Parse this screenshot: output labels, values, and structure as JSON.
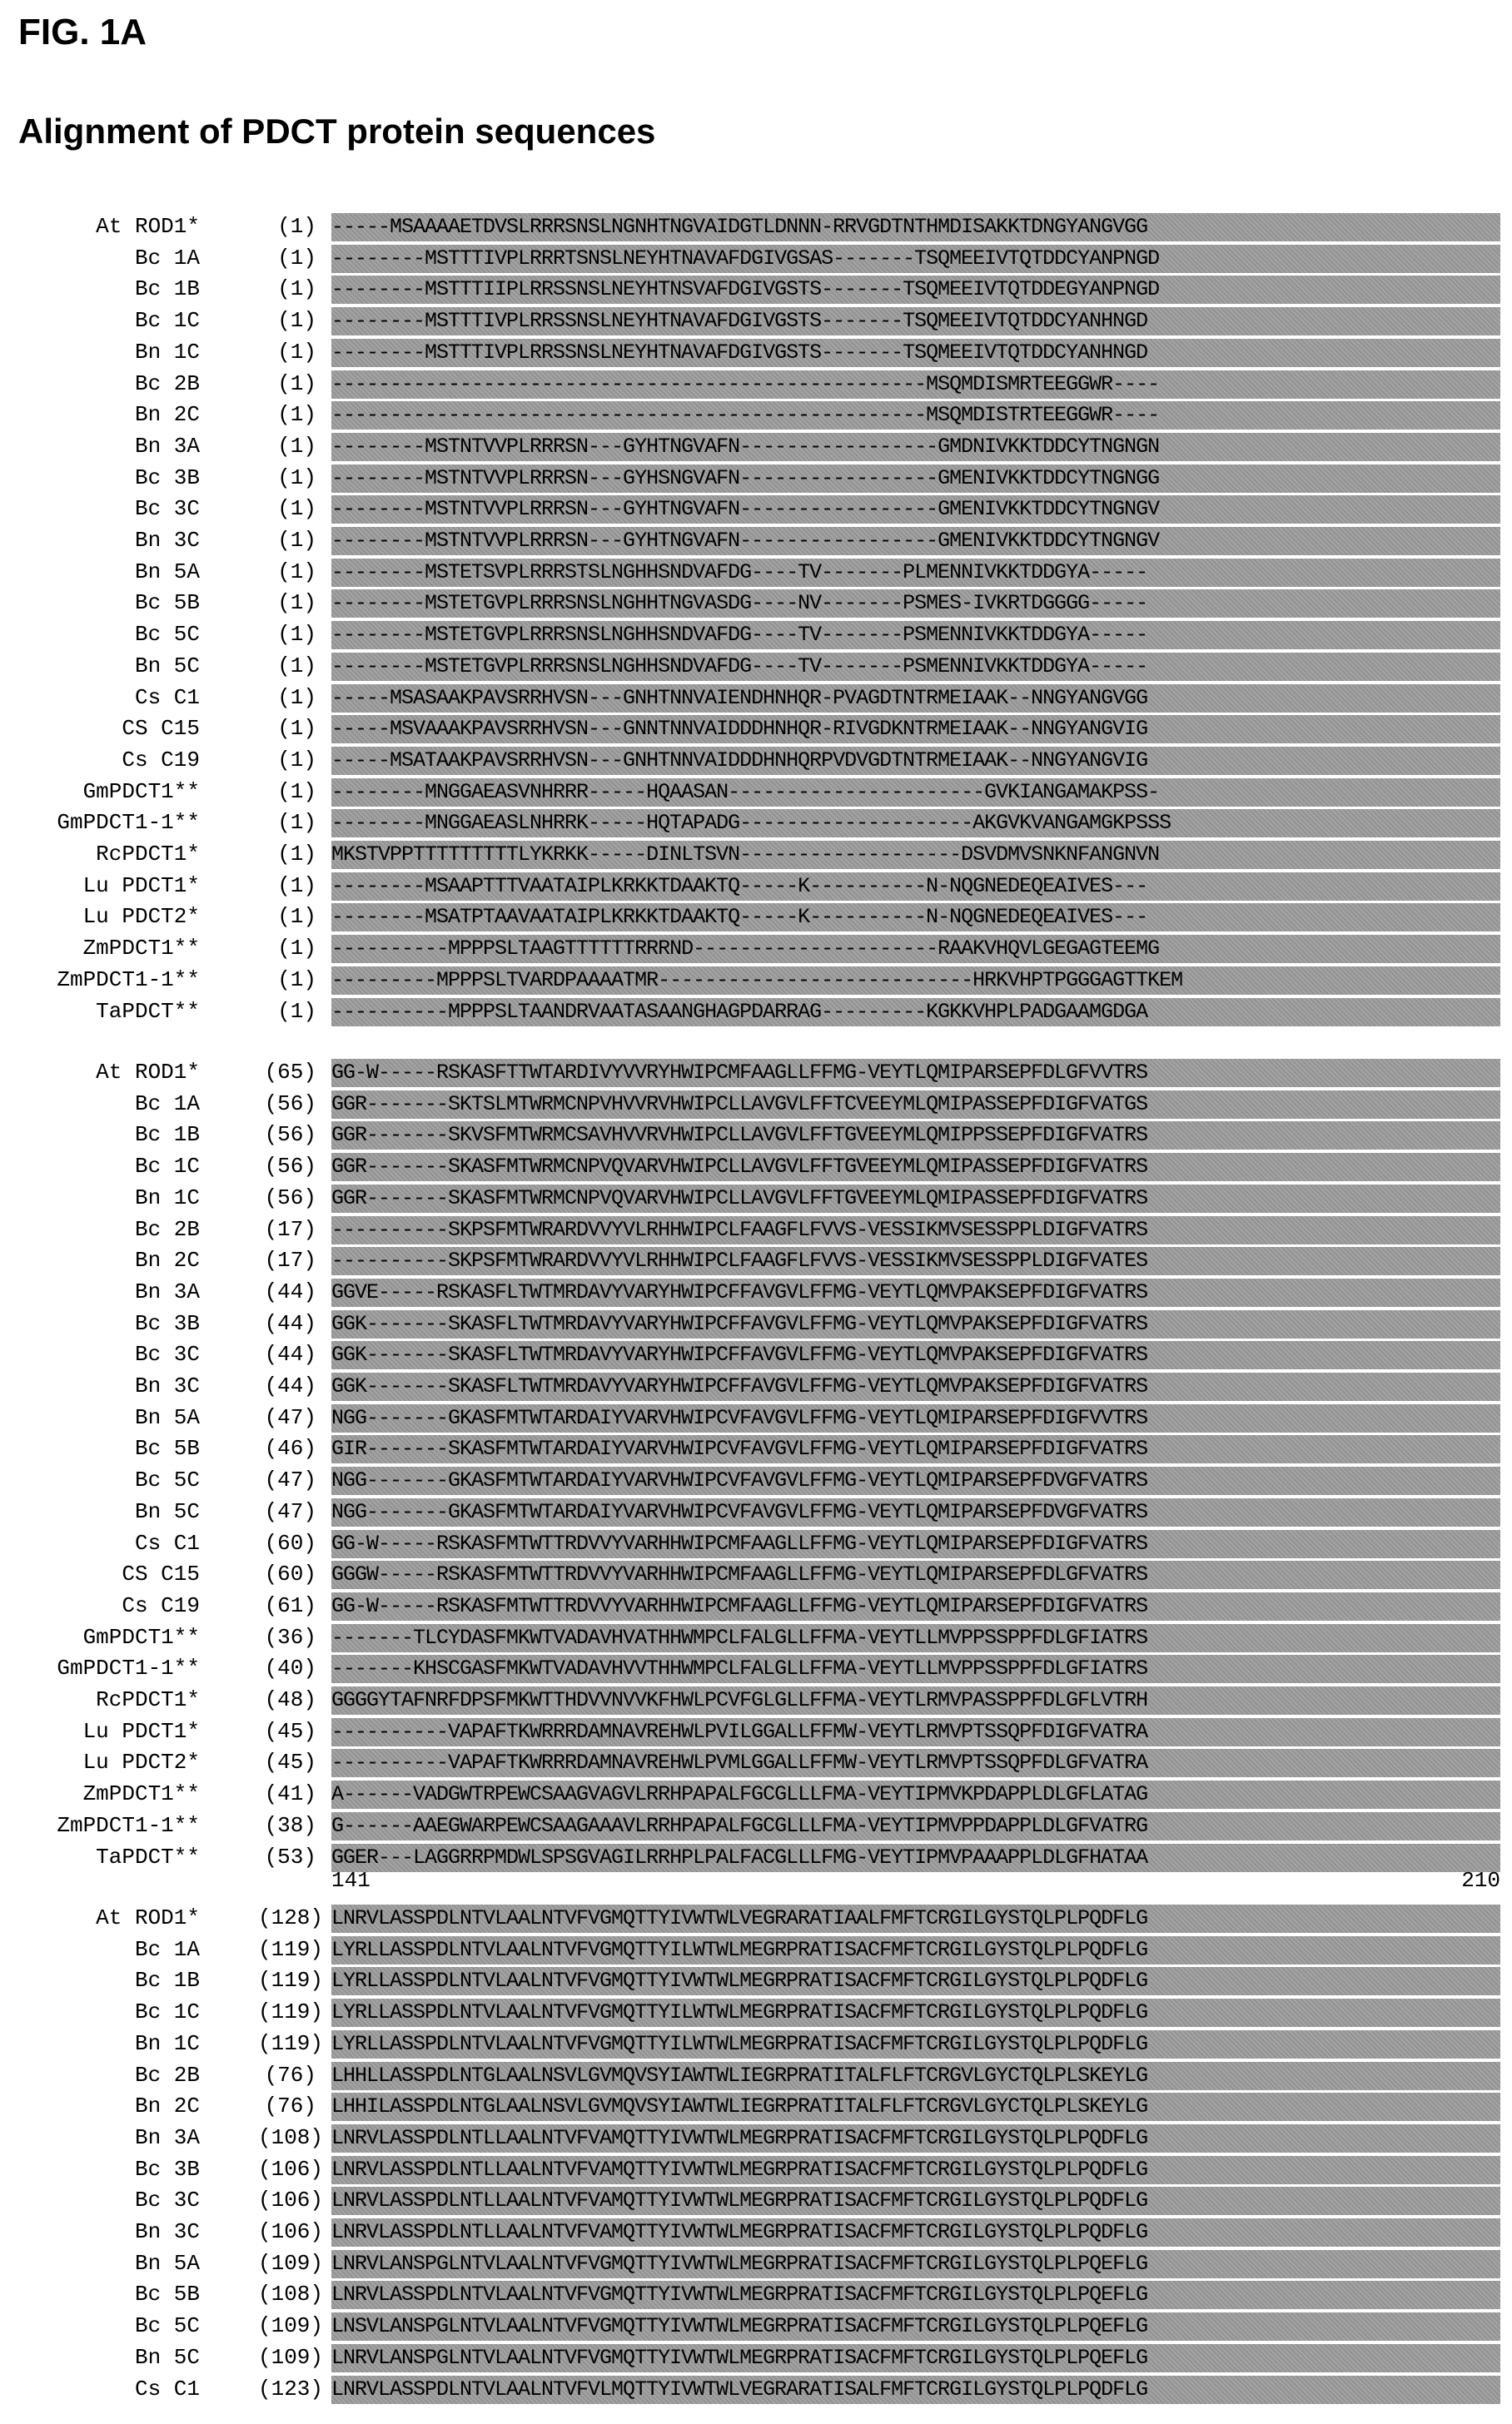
{
  "figure_label": "FIG. 1A",
  "title": "Alignment of PDCT protein sequences",
  "blocks": [
    {
      "rows": [
        {
          "name": "At ROD1*",
          "pos": "(1)",
          "seq": "-----MSAAAAETDVSLRRRSNSLNGNHTNGVAIDGTLDNNN-RRVGDTNTHMDISAKKTDNGYANGVGG"
        },
        {
          "name": "Bc 1A",
          "pos": "(1)",
          "seq": "--------MSTTTIVPLRRRTSNSLNEYHTNAVAFDGIVGSAS-------TSQMEEIVTQTDDCYANPNGD"
        },
        {
          "name": "Bc 1B",
          "pos": "(1)",
          "seq": "--------MSTTTIIPLRRSSNSLNEYHTNSVAFDGIVGSTS-------TSQMEEIVTQTDDEGYANPNGD"
        },
        {
          "name": "Bc 1C",
          "pos": "(1)",
          "seq": "--------MSTTTIVPLRRSSNSLNEYHTNAVAFDGIVGSTS-------TSQMEEIVTQTDDCYANHNGD"
        },
        {
          "name": "Bn 1C",
          "pos": "(1)",
          "seq": "--------MSTTTIVPLRRSSNSLNEYHTNAVAFDGIVGSTS-------TSQMEEIVTQTDDCYANHNGD"
        },
        {
          "name": "Bc 2B",
          "pos": "(1)",
          "seq": "---------------------------------------------------MSQMDISMRTEEGGWR----"
        },
        {
          "name": "Bn 2C",
          "pos": "(1)",
          "seq": "---------------------------------------------------MSQMDISTRTEEGGWR----"
        },
        {
          "name": "Bn 3A",
          "pos": "(1)",
          "seq": "--------MSTNTVVPLRRRSN---GYHTNGVAFN-----------------GMDNIVKKTDDCYTNGNGN"
        },
        {
          "name": "Bc 3B",
          "pos": "(1)",
          "seq": "--------MSTNTVVPLRRRSN---GYHSNGVAFN-----------------GMENIVKKTDDCYTNGNGG"
        },
        {
          "name": "Bc 3C",
          "pos": "(1)",
          "seq": "--------MSTNTVVPLRRRSN---GYHTNGVAFN-----------------GMENIVKKTDDCYTNGNGV"
        },
        {
          "name": "Bn 3C",
          "pos": "(1)",
          "seq": "--------MSTNTVVPLRRRSN---GYHTNGVAFN-----------------GMENIVKKTDDCYTNGNGV"
        },
        {
          "name": "Bn 5A",
          "pos": "(1)",
          "seq": "--------MSTETSVPLRRRSTSLNGHHSNDVAFDG----TV-------PLMENNIVKKTDDGYA-----"
        },
        {
          "name": "Bc 5B",
          "pos": "(1)",
          "seq": "--------MSTETGVPLRRRSNSLNGHHTNGVASDG----NV-------PSMES-IVKRTDGGGG-----"
        },
        {
          "name": "Bc 5C",
          "pos": "(1)",
          "seq": "--------MSTETGVPLRRRSNSLNGHHSNDVAFDG----TV-------PSMENNIVKKTDDGYA-----"
        },
        {
          "name": "Bn 5C",
          "pos": "(1)",
          "seq": "--------MSTETGVPLRRRSNSLNGHHSNDVAFDG----TV-------PSMENNIVKKTDDGYA-----"
        },
        {
          "name": "Cs C1",
          "pos": "(1)",
          "seq": "-----MSASAAKPAVSRRHVSN---GNHTNNVAIENDHNHQR-PVAGDTNTRMEIAAK--NNGYANGVGG"
        },
        {
          "name": "CS C15",
          "pos": "(1)",
          "seq": "-----MSVAAAKPAVSRRHVSN---GNNTNNVAIDDDHNHQR-RIVGDKNTRMEIAAK--NNGYANGVIG"
        },
        {
          "name": "Cs C19",
          "pos": "(1)",
          "seq": "-----MSATAAKPAVSRRHVSN---GNHTNNVAIDDDHNHQRPVDVGDTNTRMEIAAK--NNGYANGVIG"
        },
        {
          "name": "GmPDCT1**",
          "pos": "(1)",
          "seq": "--------MNGGAEASVNHRRR-----HQAASAN----------------------GVKIANGAMAKPSS-"
        },
        {
          "name": "GmPDCT1-1**",
          "pos": "(1)",
          "seq": "--------MNGGAEASLNHRRK-----HQTAPADG--------------------AKGVKVANGAMGKPSSS"
        },
        {
          "name": "RcPDCT1*",
          "pos": "(1)",
          "seq": "MKSTVPPTTTTTTTTTLYKRKK-----DINLTSVN-------------------DSVDMVSNKNFANGNVN"
        },
        {
          "name": "Lu PDCT1*",
          "pos": "(1)",
          "seq": "--------MSAAPTTTVAATAIPLKRKKTDAAKTQ-----K----------N-NQGNEDEQEAIVES---"
        },
        {
          "name": "Lu PDCT2*",
          "pos": "(1)",
          "seq": "--------MSATPTAAVAATAIPLKRKKTDAAKTQ-----K----------N-NQGNEDEQEAIVES---"
        },
        {
          "name": "ZmPDCT1**",
          "pos": "(1)",
          "seq": "----------MPPPSLTAAGTTTTTTRRRND---------------------RAAKVHQVLGEGAGTEEMG"
        },
        {
          "name": "ZmPDCT1-1**",
          "pos": "(1)",
          "seq": "---------MPPPSLTVARDPAAAATMR---------------------------HRKVHPTPGGGAGTTKEM"
        },
        {
          "name": "TaPDCT**",
          "pos": "(1)",
          "seq": "----------MPPPSLTAANDRVAATASAANGHAGPDARRAG---------KGKKVHPLPADGAAMGDGA"
        }
      ]
    },
    {
      "rows": [
        {
          "name": "At ROD1*",
          "pos": "(65)",
          "seq": "GG-W-----RSKASFTTWTARDIVYVVRYHWIPCMFAAGLLFFMG-VEYTLQMIPARSEPFDLGFVVTRS"
        },
        {
          "name": "Bc 1A",
          "pos": "(56)",
          "seq": "GGR-------SKTSLMTWRMCNPVHVVRVHWIPCLLAVGVLFFTCVEEYMLQMIPASSEPFDIGFVATGS"
        },
        {
          "name": "Bc 1B",
          "pos": "(56)",
          "seq": "GGR-------SKVSFMTWRMCSAVHVVRVHWIPCLLAVGVLFFTGVEEYMLQMIPPSSEPFDIGFVATRS"
        },
        {
          "name": "Bc 1C",
          "pos": "(56)",
          "seq": "GGR-------SKASFMTWRMCNPVQVARVHWIPCLLAVGVLFFTGVEEYMLQMIPASSEPFDIGFVATRS"
        },
        {
          "name": "Bn 1C",
          "pos": "(56)",
          "seq": "GGR-------SKASFMTWRMCNPVQVARVHWIPCLLAVGVLFFTGVEEYMLQMIPASSEPFDIGFVATRS"
        },
        {
          "name": "Bc 2B",
          "pos": "(17)",
          "seq": "----------SKPSFMTWRARDVVYVLRHHWIPCLFAAGFLFVVS-VESSIKMVSESSPPLDIGFVATRS"
        },
        {
          "name": "Bn 2C",
          "pos": "(17)",
          "seq": "----------SKPSFMTWRARDVVYVLRHHWIPCLFAAGFLFVVS-VESSIKMVSESSPPLDIGFVATES"
        },
        {
          "name": "Bn 3A",
          "pos": "(44)",
          "seq": "GGVE-----RSKASFLTWTMRDAVYVARYHWIPCFFAVGVLFFMG-VEYTLQMVPAKSEPFDIGFVATRS"
        },
        {
          "name": "Bc 3B",
          "pos": "(44)",
          "seq": "GGK-------SKASFLTWTMRDAVYVARYHWIPCFFAVGVLFFMG-VEYTLQMVPAKSEPFDIGFVATRS"
        },
        {
          "name": "Bc 3C",
          "pos": "(44)",
          "seq": "GGK-------SKASFLTWTMRDAVYVARYHWIPCFFAVGVLFFMG-VEYTLQMVPAKSEPFDIGFVATRS"
        },
        {
          "name": "Bn 3C",
          "pos": "(44)",
          "seq": "GGK-------SKASFLTWTMRDAVYVARYHWIPCFFAVGVLFFMG-VEYTLQMVPAKSEPFDIGFVATRS"
        },
        {
          "name": "Bn 5A",
          "pos": "(47)",
          "seq": "NGG-------GKASFMTWTARDAIYVARVHWIPCVFAVGVLFFMG-VEYTLQMIPARSEPFDIGFVVTRS"
        },
        {
          "name": "Bc 5B",
          "pos": "(46)",
          "seq": "GIR-------SKASFMTWTARDAIYVARVHWIPCVFAVGVLFFMG-VEYTLQMIPARSEPFDIGFVATRS"
        },
        {
          "name": "Bc 5C",
          "pos": "(47)",
          "seq": "NGG-------GKASFMTWTARDAIYVARVHWIPCVFAVGVLFFMG-VEYTLQMIPARSEPFDVGFVATRS"
        },
        {
          "name": "Bn 5C",
          "pos": "(47)",
          "seq": "NGG-------GKASFMTWTARDAIYVARVHWIPCVFAVGVLFFMG-VEYTLQMIPARSEPFDVGFVATRS"
        },
        {
          "name": "Cs C1",
          "pos": "(60)",
          "seq": "GG-W-----RSKASFMTWTTRDVVYVARHHWIPCMFAAGLLFFMG-VEYTLQMIPARSEPFDIGFVATRS"
        },
        {
          "name": "CS C15",
          "pos": "(60)",
          "seq": "GGGW-----RSKASFMTWTTRDVVYVARHHWIPCMFAAGLLFFMG-VEYTLQMIPARSEPFDLGFVATRS"
        },
        {
          "name": "Cs C19",
          "pos": "(61)",
          "seq": "GG-W-----RSKASFMTWTTRDVVYVARHHWIPCMFAAGLLFFMG-VEYTLQMIPARSEPFDIGFVATRS"
        },
        {
          "name": "GmPDCT1**",
          "pos": "(36)",
          "seq": "-------TLCYDASFMKWTVADAVHVATHHWMPCLFALGLLFFMA-VEYTLLMVPPSSPPFDLGFIATRS"
        },
        {
          "name": "GmPDCT1-1**",
          "pos": "(40)",
          "seq": "-------KHSCGASFMKWTVADAVHVVTHHWMPCLFALGLLFFMA-VEYTLLMVPPSSPPFDLGFIATRS"
        },
        {
          "name": "RcPDCT1*",
          "pos": "(48)",
          "seq": "GGGGYTAFNRFDPSFMKWTTHDVVNVVKFHWLPCVFGLGLLFFMA-VEYTLRMVPASSPPFDLGFLVTRH"
        },
        {
          "name": "Lu PDCT1*",
          "pos": "(45)",
          "seq": "----------VAPAFTKWRRRDAMNAVREHWLPVILGGALLFFMW-VEYTLRMVPTSSQPFDIGFVATRA"
        },
        {
          "name": "Lu PDCT2*",
          "pos": "(45)",
          "seq": "----------VAPAFTKWRRRDAMNAVREHWLPVMLGGALLFFMW-VEYTLRMVPTSSQPFDLGFVATRA"
        },
        {
          "name": "ZmPDCT1**",
          "pos": "(41)",
          "seq": "A------VADGWTRPEWCSAAGVAGVLRRHPAPALFGCGLLLFMA-VEYTIPMVKPDAPPLDLGFLATAG"
        },
        {
          "name": "ZmPDCT1-1**",
          "pos": "(38)",
          "seq": "G------AAEGWARPEWCSAAGAAAVLRRHPAPALFGCGLLLFMA-VEYTIPMVPPDAPPLDLGFVATRG"
        },
        {
          "name": "TaPDCT**",
          "pos": "(53)",
          "seq": "GGER---LAGGRRPMDWLSPSGVAGILRRHPLPALFACGLLLFMG-VEYTIPMVPAAAPPLDLGFHATAA"
        }
      ]
    },
    {
      "ruler": {
        "start": "141",
        "end": "210"
      },
      "rows": [
        {
          "name": "At ROD1*",
          "pos": "(128)",
          "seq": "LNRVLASSPDLNTVLAALNTVFVGMQTTYIVWTWLVEGRARATIAALFMFTCRGILGYSTQLPLPQDFLG"
        },
        {
          "name": "Bc 1A",
          "pos": "(119)",
          "seq": "LYRLLASSPDLNTVLAALNTVFVGMQTTYILWTWLMEGRPRATISACFMFTCRGILGYSTQLPLPQDFLG"
        },
        {
          "name": "Bc 1B",
          "pos": "(119)",
          "seq": "LYRLLASSPDLNTVLAALNTVFVGMQTTYIVWTWLMEGRPRATISACFMFTCRGILGYSTQLPLPQDFLG"
        },
        {
          "name": "Bc 1C",
          "pos": "(119)",
          "seq": "LYRLLASSPDLNTVLAALNTVFVGMQTTYILWTWLMEGRPRATISACFMFTCRGILGYSTQLPLPQDFLG"
        },
        {
          "name": "Bn 1C",
          "pos": "(119)",
          "seq": "LYRLLASSPDLNTVLAALNTVFVGMQTTYILWTWLMEGRPRATISACFMFTCRGILGYSTQLPLPQDFLG"
        },
        {
          "name": "Bc 2B",
          "pos": "(76)",
          "seq": "LHHLLASSPDLNTGLAALNSVLGVMQVSYIAWTWLIEGRPRATITALFLFTCRGVLGYCTQLPLSKEYLG"
        },
        {
          "name": "Bn 2C",
          "pos": "(76)",
          "seq": "LHHILASSPDLNTGLAALNSVLGVMQVSYIAWTWLIEGRPRATITALFLFTCRGVLGYCTQLPLSKEYLG"
        },
        {
          "name": "Bn 3A",
          "pos": "(108)",
          "seq": "LNRVLASSPDLNTLLAALNTVFVAMQTTYIVWTWLMEGRPRATISACFMFTCRGILGYSTQLPLPQDFLG"
        },
        {
          "name": "Bc 3B",
          "pos": "(106)",
          "seq": "LNRVLASSPDLNTLLAALNTVFVAMQTTYIVWTWLMEGRPRATISACFMFTCRGILGYSTQLPLPQDFLG"
        },
        {
          "name": "Bc 3C",
          "pos": "(106)",
          "seq": "LNRVLASSPDLNTLLAALNTVFVAMQTTYIVWTWLMEGRPRATISACFMFTCRGILGYSTQLPLPQDFLG"
        },
        {
          "name": "Bn 3C",
          "pos": "(106)",
          "seq": "LNRVLASSPDLNTLLAALNTVFVAMQTTYIVWTWLMEGRPRATISACFMFTCRGILGYSTQLPLPQDFLG"
        },
        {
          "name": "Bn 5A",
          "pos": "(109)",
          "seq": "LNRVLANSPGLNTVLAALNTVFVGMQTTYIVWTWLMEGRPRATISACFMFTCRGILGYSTQLPLPQEFLG"
        },
        {
          "name": "Bc 5B",
          "pos": "(108)",
          "seq": "LNRVLASSPDLNTVLAALNTVFVGMQTTYIVWTWLMEGRPRATISACFMFTCRGILGYSTQLPLPQEFLG"
        },
        {
          "name": "Bc 5C",
          "pos": "(109)",
          "seq": "LNSVLANSPGLNTVLAALNTVFVGMQTTYIVWTWLMEGRPRATISACFMFTCRGILGYSTQLPLPQEFLG"
        },
        {
          "name": "Bn 5C",
          "pos": "(109)",
          "seq": "LNRVLANSPGLNTVLAALNTVFVGMQTTYIVWTWLMEGRPRATISACFMFTCRGILGYSTQLPLPQEFLG"
        },
        {
          "name": "Cs C1",
          "pos": "(123)",
          "seq": "LNRVLASSPDLNTVLAALNTVFVLMQTTYIVWTWLVEGRARATISALFMFTCRGILGYSTQLPLPQDFLG"
        }
      ]
    }
  ]
}
